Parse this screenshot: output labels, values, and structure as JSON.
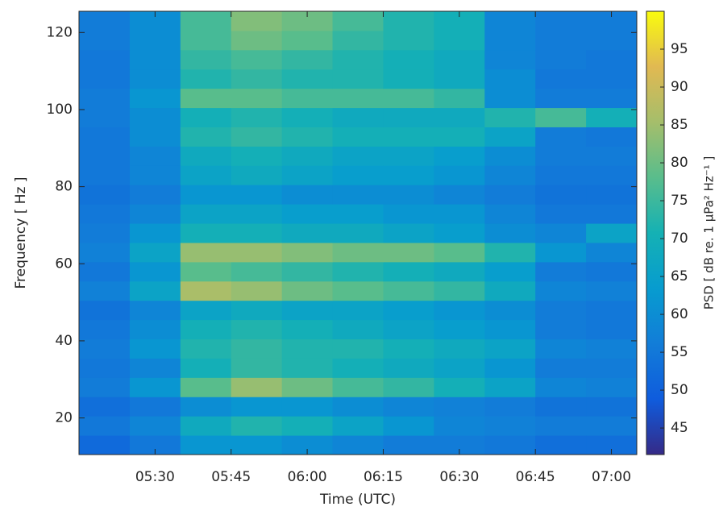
{
  "chart_data": {
    "type": "heatmap",
    "xlabel": "Time (UTC)",
    "ylabel": "Frequency [ Hz ]",
    "x_edges": [
      315,
      325,
      335,
      345,
      355,
      365,
      375,
      385,
      395,
      405,
      415,
      425
    ],
    "y_edges": [
      10.5,
      15.5,
      20.5,
      25.5,
      30.5,
      35.5,
      40.5,
      45.5,
      50.5,
      55.5,
      60.5,
      65.5,
      70.5,
      75.5,
      80.5,
      85.5,
      90.5,
      95.5,
      100.5,
      105.5,
      110.5,
      115.5,
      120.5,
      125.5
    ],
    "z": [
      [
        52,
        55,
        62,
        62,
        60,
        58,
        56,
        56,
        55,
        53,
        53
      ],
      [
        55,
        58,
        68,
        72,
        70,
        66,
        62,
        58,
        57,
        56,
        56
      ],
      [
        53,
        55,
        60,
        62,
        62,
        60,
        58,
        57,
        56,
        54,
        54
      ],
      [
        56,
        62,
        78,
        84,
        80,
        76,
        74,
        70,
        66,
        58,
        57
      ],
      [
        55,
        58,
        70,
        74,
        72,
        70,
        68,
        66,
        62,
        56,
        56
      ],
      [
        56,
        62,
        72,
        74,
        72,
        72,
        70,
        68,
        66,
        58,
        57
      ],
      [
        55,
        60,
        70,
        72,
        70,
        68,
        66,
        64,
        62,
        56,
        55
      ],
      [
        54,
        58,
        66,
        68,
        66,
        66,
        64,
        62,
        60,
        56,
        55
      ],
      [
        57,
        66,
        86,
        84,
        80,
        78,
        76,
        74,
        68,
        58,
        57
      ],
      [
        55,
        62,
        78,
        76,
        74,
        72,
        70,
        68,
        64,
        56,
        55
      ],
      [
        57,
        66,
        84,
        84,
        82,
        80,
        80,
        78,
        72,
        62,
        58
      ],
      [
        56,
        62,
        70,
        70,
        68,
        68,
        66,
        64,
        60,
        58,
        66
      ],
      [
        55,
        58,
        66,
        66,
        64,
        64,
        62,
        62,
        58,
        55,
        55
      ],
      [
        54,
        56,
        62,
        62,
        60,
        60,
        60,
        58,
        56,
        54,
        54
      ],
      [
        55,
        58,
        66,
        68,
        66,
        64,
        64,
        62,
        58,
        55,
        55
      ],
      [
        55,
        58,
        68,
        70,
        68,
        66,
        66,
        64,
        60,
        56,
        56
      ],
      [
        55,
        60,
        72,
        74,
        72,
        70,
        70,
        70,
        66,
        56,
        55
      ],
      [
        56,
        60,
        70,
        72,
        70,
        68,
        68,
        68,
        72,
        76,
        70
      ],
      [
        56,
        62,
        78,
        78,
        76,
        76,
        76,
        74,
        60,
        56,
        56
      ],
      [
        55,
        60,
        72,
        74,
        72,
        72,
        70,
        68,
        60,
        55,
        55
      ],
      [
        55,
        60,
        74,
        76,
        74,
        72,
        70,
        68,
        58,
        56,
        55
      ],
      [
        56,
        60,
        76,
        80,
        78,
        74,
        72,
        70,
        58,
        56,
        56
      ],
      [
        56,
        60,
        76,
        82,
        80,
        76,
        72,
        70,
        58,
        56,
        56
      ]
    ],
    "xlim": [
      315,
      425
    ],
    "ylim": [
      10.5,
      125.5
    ],
    "xticks": [
      {
        "value": 330,
        "label": "05:30"
      },
      {
        "value": 345,
        "label": "05:45"
      },
      {
        "value": 360,
        "label": "06:00"
      },
      {
        "value": 375,
        "label": "06:15"
      },
      {
        "value": 390,
        "label": "06:30"
      },
      {
        "value": 405,
        "label": "06:45"
      },
      {
        "value": 420,
        "label": "07:00"
      }
    ],
    "yticks": [
      20,
      40,
      60,
      80,
      100,
      120
    ],
    "colormap": [
      "#352a87",
      "#0f5cdd",
      "#127dd8",
      "#079ccf",
      "#15b1b4",
      "#59bd8c",
      "#a5be6b",
      "#e1b952",
      "#f9fb0e"
    ],
    "colorbar": {
      "label": "PSD [ dB re. 1 μPa² Hz⁻¹ ]",
      "lim": [
        41.5,
        100
      ],
      "ticks": [
        45,
        50,
        55,
        60,
        65,
        70,
        75,
        80,
        85,
        90,
        95
      ]
    }
  }
}
